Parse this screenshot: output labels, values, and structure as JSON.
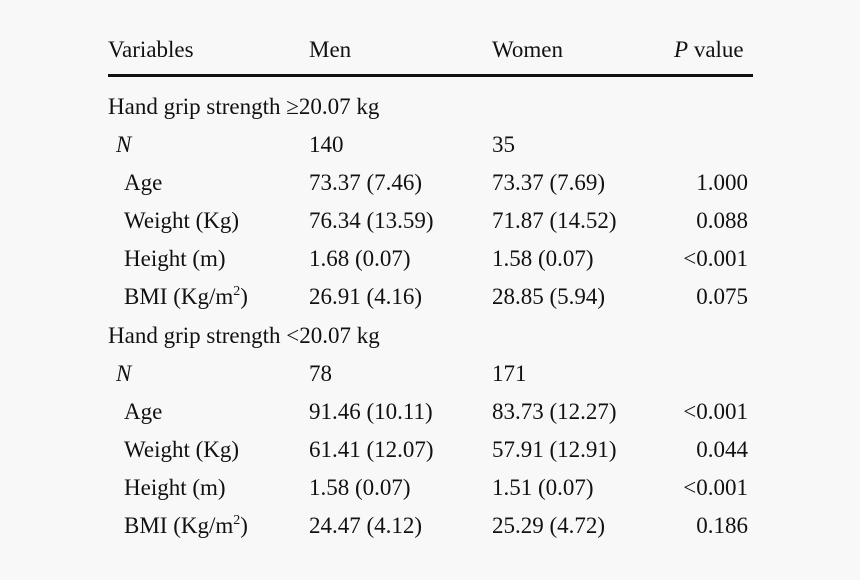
{
  "header": {
    "variables": "Variables",
    "men": "Men",
    "women": "Women",
    "p_italic": "P",
    "p_rest": "value"
  },
  "sections": [
    {
      "title": "Hand grip strength ≥20.07 kg",
      "n_label": "N",
      "n_men": "140",
      "n_women": "35",
      "rows": [
        {
          "label": "Age",
          "men": "73.37 (7.46)",
          "women": "73.37 (7.69)",
          "p": "1.000"
        },
        {
          "label": "Weight (Kg)",
          "men": "76.34 (13.59)",
          "women": "71.87 (14.52)",
          "p": "0.088"
        },
        {
          "label": "Height (m)",
          "men": "1.68 (0.07)",
          "women": "1.58 (0.07)",
          "p": "<0.001"
        },
        {
          "label_pre": "BMI (Kg/m",
          "label_sup": "2",
          "label_post": ")",
          "men": "26.91 (4.16)",
          "women": "28.85 (5.94)",
          "p": "0.075"
        }
      ]
    },
    {
      "title": "Hand grip strength <20.07 kg",
      "n_label": "N",
      "n_men": "78",
      "n_women": "171",
      "rows": [
        {
          "label": "Age",
          "men": "91.46 (10.11)",
          "women": "83.73 (12.27)",
          "p": "<0.001"
        },
        {
          "label": "Weight (Kg)",
          "men": "61.41 (12.07)",
          "women": "57.91 (12.91)",
          "p": "0.044"
        },
        {
          "label": "Height (m)",
          "men": "1.58 (0.07)",
          "women": "1.51 (0.07)",
          "p": "<0.001"
        },
        {
          "label_pre": "BMI (Kg/m",
          "label_sup": "2",
          "label_post": ")",
          "men": "24.47 (4.12)",
          "women": "25.29 (4.72)",
          "p": "0.186"
        }
      ]
    }
  ]
}
